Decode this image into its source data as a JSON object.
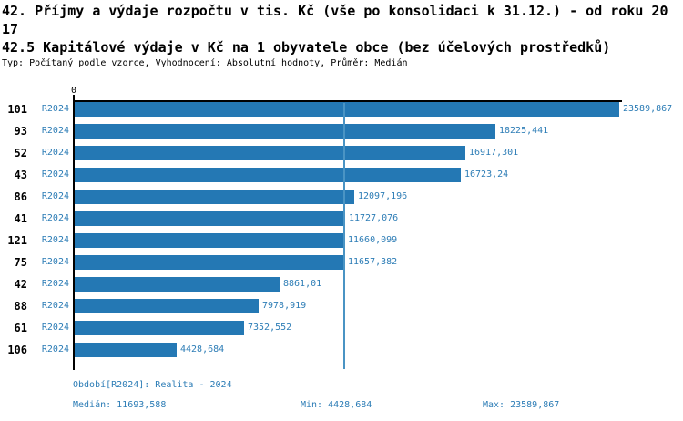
{
  "header": {
    "title": "42. Příjmy a výdaje rozpočtu v tis. Kč (vše po konsolidaci k 31.12.) - od roku 2017",
    "subtitle": "42.5 Kapitálové výdaje v Kč na 1 obyvatele obce (bez účelových prostředků)",
    "meta": "Typ: Počítaný podle vzorce, Vyhodnocení: Absolutní hodnoty, Průměr: Medián"
  },
  "chart_data": {
    "type": "bar",
    "orientation": "horizontal",
    "title": "42.5 Kapitálové výdaje v Kč na 1 obyvatele obce (bez účelových prostředků)",
    "categories": [
      "101",
      "93",
      "52",
      "43",
      "86",
      "41",
      "121",
      "75",
      "42",
      "88",
      "61",
      "106"
    ],
    "series": [
      {
        "name": "R2024",
        "values": [
          23589.867,
          18225.441,
          16917.301,
          16723.24,
          12097.196,
          11727.076,
          11660.099,
          11657.382,
          8861.01,
          7978.919,
          7352.552,
          4428.684
        ],
        "value_labels": [
          "23589,867",
          "18225,441",
          "16917,301",
          "16723,24",
          "12097,196",
          "11727,076",
          "11660,099",
          "11657,382",
          "8861,01",
          "7978,919",
          "7352,552",
          "4428,684"
        ]
      }
    ],
    "row_period_label": "R2024",
    "x_axis": {
      "origin_tick_label": "0",
      "xlim": [
        0,
        23589.867
      ]
    },
    "median_value": 11693.588,
    "grid": false,
    "legend_position": "none"
  },
  "footer": {
    "period_line": "Období[R2024]: Realita - 2024",
    "median_label": "Medián: 11693,588",
    "min_label": "Min: 4428,684",
    "max_label": "Max: 23589,867"
  },
  "colors": {
    "bar": "#2478b4",
    "accent_text": "#2d7db6",
    "median_line": "#4a94c4",
    "axis": "#000000"
  }
}
